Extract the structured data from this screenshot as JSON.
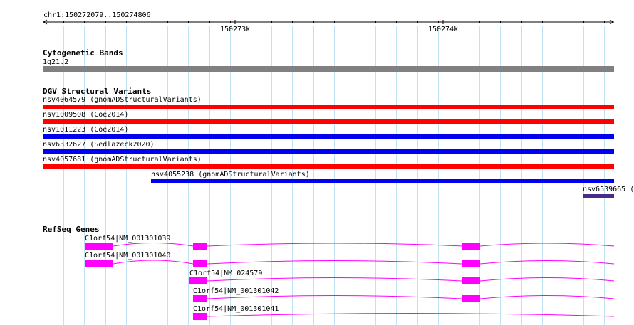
{
  "ruler": {
    "location": "chr1:150272079..150274806",
    "ticks": [
      "150273k",
      "150274k"
    ]
  },
  "tracks": {
    "cytoband": {
      "title": "Cytogenetic Bands",
      "band_label": "1q21.2",
      "band_color": "#808080"
    },
    "dgv": {
      "title": "DGV Structural Variants",
      "colors": {
        "red": "#ff0000",
        "blue": "#0000ee",
        "purple": "#4b2a8a"
      },
      "features": [
        {
          "label": "nsv4064579 (gnomADStructuralVariants)",
          "color": "#ff0000"
        },
        {
          "label": "nsv1009508 (Coe2014)",
          "color": "#ff0000"
        },
        {
          "label": "nsv1011223 (Coe2014)",
          "color": "#0000ee"
        },
        {
          "label": "nsv6332627 (Sedlazeck2020)",
          "color": "#0000ee"
        },
        {
          "label": "nsv4057681 (gnomADStructuralVariants)",
          "color": "#ff0000"
        },
        {
          "label": "nsv4055238 (gnomADStructuralVariants)",
          "color": "#0000ee"
        },
        {
          "label": "nsv6539665 (",
          "color": "#4b2a8a"
        }
      ]
    },
    "refseq": {
      "title": "RefSeq Genes",
      "exon_color": "#ff00ff",
      "transcripts": [
        {
          "label": "C1orf54|NM_001301039"
        },
        {
          "label": "C1orf54|NM_001301040"
        },
        {
          "label": "C1orf54|NM_024579"
        },
        {
          "label": "C1orf54|NM_001301042"
        },
        {
          "label": "C1orf54|NM_001301041"
        }
      ]
    }
  }
}
